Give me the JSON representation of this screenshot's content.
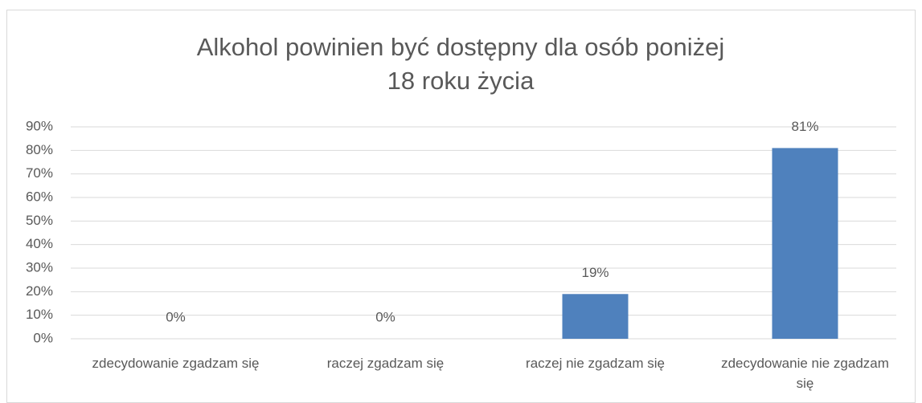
{
  "chart_data": {
    "type": "bar",
    "title": "Alkohol powinien być dostępny dla osób poniżej 18 roku życia",
    "categories": [
      "zdecydowanie zgadzam się",
      "raczej zgadzam się",
      "raczej nie zgadzam się",
      "zdecydowanie nie zgadzam się"
    ],
    "values": [
      0,
      0,
      19,
      81
    ],
    "value_labels": [
      "0%",
      "0%",
      "19%",
      "81%"
    ],
    "color": "#4f81bd",
    "ylim": [
      0,
      90
    ],
    "yticks": [
      {
        "value": 0,
        "label": "0%"
      },
      {
        "value": 10,
        "label": "10%"
      },
      {
        "value": 20,
        "label": "20%"
      },
      {
        "value": 30,
        "label": "30%"
      },
      {
        "value": 40,
        "label": "40%"
      },
      {
        "value": 50,
        "label": "50%"
      },
      {
        "value": 60,
        "label": "60%"
      },
      {
        "value": 70,
        "label": "70%"
      },
      {
        "value": 80,
        "label": "80%"
      },
      {
        "value": 90,
        "label": "90%"
      }
    ],
    "grid": true
  }
}
